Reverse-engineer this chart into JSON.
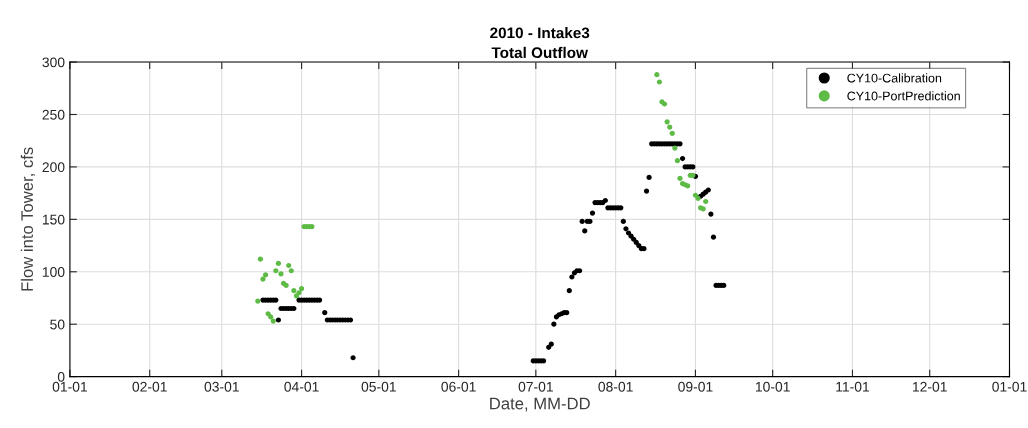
{
  "chart_data": {
    "type": "scatter",
    "title": "2010 - Intake3\nTotal Outflow",
    "xlabel": "Date, MM-DD",
    "ylabel": "Flow into Tower, cfs",
    "xlim": [
      "2010-01-01",
      "2011-01-01"
    ],
    "xticks": [
      {
        "value": "2010-01-01",
        "label": "01-01"
      },
      {
        "value": "2010-02-01",
        "label": "02-01"
      },
      {
        "value": "2010-03-01",
        "label": "03-01"
      },
      {
        "value": "2010-04-01",
        "label": "04-01"
      },
      {
        "value": "2010-05-01",
        "label": "05-01"
      },
      {
        "value": "2010-06-01",
        "label": "06-01"
      },
      {
        "value": "2010-07-01",
        "label": "07-01"
      },
      {
        "value": "2010-08-01",
        "label": "08-01"
      },
      {
        "value": "2010-09-01",
        "label": "09-01"
      },
      {
        "value": "2010-10-01",
        "label": "10-01"
      },
      {
        "value": "2010-11-01",
        "label": "11-01"
      },
      {
        "value": "2010-12-01",
        "label": "12-01"
      },
      {
        "value": "2011-01-01",
        "label": "01-01"
      }
    ],
    "ylim": [
      0,
      300
    ],
    "yticks": [
      0,
      50,
      100,
      150,
      200,
      250,
      300
    ],
    "grid": true,
    "legend": "top right",
    "marker": "circle",
    "series": [
      {
        "name": "CY10-Calibration",
        "color": "#000000",
        "x": [
          "2010-03-17",
          "2010-03-18",
          "2010-03-19",
          "2010-03-20",
          "2010-03-21",
          "2010-03-22",
          "2010-03-23",
          "2010-03-24",
          "2010-03-25",
          "2010-03-26",
          "2010-03-27",
          "2010-03-28",
          "2010-03-29",
          "2010-03-31",
          "2010-04-01",
          "2010-04-02",
          "2010-04-03",
          "2010-04-04",
          "2010-04-05",
          "2010-04-06",
          "2010-04-07",
          "2010-04-08",
          "2010-04-10",
          "2010-04-11",
          "2010-04-12",
          "2010-04-13",
          "2010-04-14",
          "2010-04-15",
          "2010-04-16",
          "2010-04-17",
          "2010-04-18",
          "2010-04-19",
          "2010-04-20",
          "2010-04-21",
          "2010-06-30",
          "2010-07-01",
          "2010-07-02",
          "2010-07-03",
          "2010-07-04",
          "2010-07-06",
          "2010-07-07",
          "2010-07-08",
          "2010-07-09",
          "2010-07-10",
          "2010-07-11",
          "2010-07-12",
          "2010-07-13",
          "2010-07-14",
          "2010-07-15",
          "2010-07-16",
          "2010-07-17",
          "2010-07-18",
          "2010-07-19",
          "2010-07-20",
          "2010-07-21",
          "2010-07-22",
          "2010-07-23",
          "2010-07-24",
          "2010-07-25",
          "2010-07-26",
          "2010-07-27",
          "2010-07-28",
          "2010-07-29",
          "2010-07-30",
          "2010-07-31",
          "2010-08-01",
          "2010-08-02",
          "2010-08-03",
          "2010-08-04",
          "2010-08-05",
          "2010-08-06",
          "2010-08-07",
          "2010-08-08",
          "2010-08-09",
          "2010-08-10",
          "2010-08-11",
          "2010-08-12",
          "2010-08-13",
          "2010-08-14",
          "2010-08-15",
          "2010-08-16",
          "2010-08-17",
          "2010-08-18",
          "2010-08-19",
          "2010-08-20",
          "2010-08-21",
          "2010-08-22",
          "2010-08-23",
          "2010-08-24",
          "2010-08-25",
          "2010-08-26",
          "2010-08-27",
          "2010-08-28",
          "2010-08-29",
          "2010-08-30",
          "2010-08-31",
          "2010-09-01",
          "2010-09-03",
          "2010-09-04",
          "2010-09-05",
          "2010-09-06",
          "2010-09-07",
          "2010-09-08",
          "2010-09-09",
          "2010-09-10",
          "2010-09-11",
          "2010-09-12"
        ],
        "values": [
          73,
          73,
          73,
          73,
          73,
          73,
          54,
          65,
          65,
          65,
          65,
          65,
          65,
          73,
          73,
          73,
          73,
          73,
          73,
          73,
          73,
          73,
          61,
          54,
          54,
          54,
          54,
          54,
          54,
          54,
          54,
          54,
          54,
          18,
          15,
          15,
          15,
          15,
          15,
          28,
          31,
          50,
          57,
          59,
          60,
          61,
          61,
          82,
          95,
          99,
          101,
          101,
          148,
          139,
          148,
          148,
          156,
          166,
          166,
          166,
          166,
          168,
          161,
          161,
          161,
          161,
          161,
          161,
          148,
          141,
          137,
          134,
          131,
          128,
          125,
          122,
          122,
          177,
          190,
          222,
          222,
          222,
          222,
          222,
          222,
          222,
          222,
          222,
          222,
          222,
          222,
          208,
          200,
          200,
          200,
          200,
          191,
          172,
          174,
          176,
          178,
          155,
          133,
          87,
          87,
          87,
          87
        ]
      },
      {
        "name": "CY10-PortPrediction",
        "color": "#5dbb46",
        "x": [
          "2010-03-15",
          "2010-03-16",
          "2010-03-17",
          "2010-03-18",
          "2010-03-19",
          "2010-03-20",
          "2010-03-21",
          "2010-03-22",
          "2010-03-23",
          "2010-03-24",
          "2010-03-25",
          "2010-03-26",
          "2010-03-27",
          "2010-03-28",
          "2010-03-29",
          "2010-03-30",
          "2010-03-31",
          "2010-04-01",
          "2010-04-02",
          "2010-04-03",
          "2010-04-04",
          "2010-04-05",
          "2010-08-17",
          "2010-08-18",
          "2010-08-19",
          "2010-08-20",
          "2010-08-21",
          "2010-08-22",
          "2010-08-23",
          "2010-08-24",
          "2010-08-25",
          "2010-08-26",
          "2010-08-27",
          "2010-08-28",
          "2010-08-29",
          "2010-08-30",
          "2010-08-31",
          "2010-09-01",
          "2010-09-02",
          "2010-09-03",
          "2010-09-04",
          "2010-09-05"
        ],
        "values": [
          72,
          112,
          93,
          97,
          60,
          57,
          53,
          101,
          108,
          98,
          89,
          87,
          106,
          101,
          82,
          77,
          80,
          84,
          143,
          143,
          143,
          143,
          288,
          281,
          262,
          260,
          243,
          238,
          232,
          218,
          206,
          189,
          184,
          183,
          182,
          192,
          192,
          173,
          170,
          161,
          160,
          167
        ]
      }
    ]
  }
}
